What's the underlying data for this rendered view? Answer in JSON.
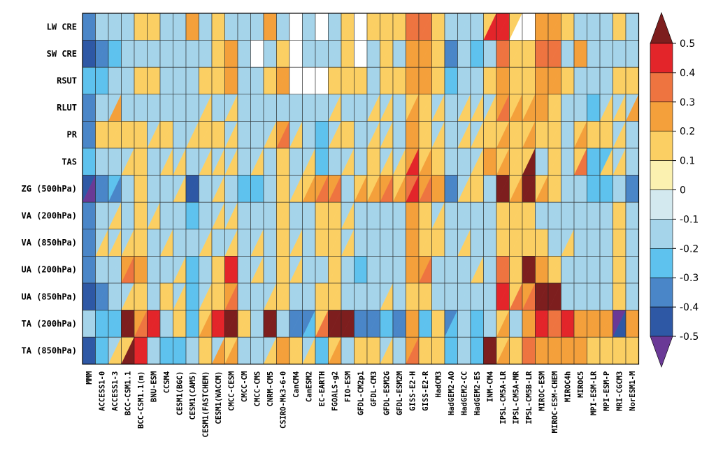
{
  "chart_data": {
    "type": "heatmap",
    "title": "",
    "xlabel": "",
    "ylabel": "",
    "cell_split": "diagonal",
    "rows": [
      "LW CRE",
      "SW CRE",
      "RSUT",
      "RLUT",
      "PR",
      "TAS",
      "ZG (500hPa)",
      "VA (200hPa)",
      "VA (850hPa)",
      "UA (200hPa)",
      "UA (850hPa)",
      "TA (200hPa)",
      "TA (850hPa)"
    ],
    "columns": [
      "MMM",
      "ACCESS1-0",
      "ACCESS1-3",
      "BCC-CSM1.1",
      "BCC-CSM1.1(m)",
      "BNU-ESM",
      "CCSM4",
      "CESM1(BGC)",
      "CESM1(CAM5)",
      "CESM1(FASTCHEM)",
      "CESM1(WACCM)",
      "CMCC-CESM",
      "CMCC-CM",
      "CMCC-CMS",
      "CNRM-CM5",
      "CSIRO-Mk3-6-0",
      "CanCM4",
      "CanESM2",
      "EC-EARTH",
      "FGOALS-g2",
      "FIO-ESM",
      "GFDL-CM2p1",
      "GFDL-CM3",
      "GFDL-ESM2G",
      "GFDL-ESM2M",
      "GISS-E2-H",
      "GISS-E2-R",
      "HadCM3",
      "HadGEM2-AO",
      "HadGEM2-CC",
      "HadGEM2-ES",
      "INM-CM4",
      "IPSL-CM5A-LR",
      "IPSL-CM5A-MR",
      "IPSL-CM5B-LR",
      "MIROC-ESM",
      "MIROC-ESM-CHEM",
      "MIROC4h",
      "MIROC5",
      "MPI-ESM-LR",
      "MPI-ESM-P",
      "MRI-CGCM3",
      "NorESM1-M"
    ],
    "colorbar": {
      "ticks": [
        "0.5",
        "0.4",
        "0.3",
        "0.2",
        "0.1",
        "0",
        "-0.1",
        "-0.2",
        "-0.3",
        "-0.4",
        "-0.5"
      ],
      "colors": [
        "#7d1e1e",
        "#e3252a",
        "#ee7440",
        "#f4a03b",
        "#fbcf63",
        "#fbf1b0",
        "#d3e9ef",
        "#a5d4ea",
        "#5ec2ee",
        "#4a86c8",
        "#2e58a5",
        "#6a3996"
      ]
    },
    "values_upper_left": [
      [
        -0.3,
        -0.1,
        -0.1,
        -0.1,
        0.1,
        0.1,
        -0.1,
        -0.1,
        0.2,
        -0.1,
        0.1,
        -0.1,
        -0.1,
        -0.1,
        0.2,
        -0.1,
        null,
        -0.1,
        null,
        -0.1,
        0.1,
        null,
        0.1,
        0.1,
        0.1,
        0.3,
        0.3,
        0.1,
        -0.1,
        -0.1,
        -0.1,
        0.1,
        0.4,
        0.1,
        null,
        0.2,
        0.2,
        0.1,
        -0.1,
        -0.1,
        -0.1,
        0.1,
        -0.1
      ],
      [
        -0.4,
        -0.3,
        -0.2,
        -0.1,
        -0.1,
        -0.1,
        -0.1,
        -0.1,
        -0.1,
        -0.1,
        0.1,
        0.2,
        -0.1,
        null,
        -0.1,
        0.1,
        null,
        -0.1,
        -0.1,
        -0.1,
        0.1,
        null,
        -0.1,
        0.1,
        -0.1,
        0.2,
        0.2,
        0.1,
        -0.3,
        -0.1,
        -0.2,
        -0.1,
        0.3,
        0.1,
        0.1,
        0.3,
        0.3,
        -0.1,
        0.2,
        -0.1,
        -0.1,
        -0.1,
        -0.1
      ],
      [
        -0.2,
        -0.2,
        -0.1,
        -0.1,
        0.1,
        0.1,
        -0.1,
        -0.1,
        -0.1,
        0.1,
        0.1,
        0.2,
        -0.1,
        -0.1,
        0.1,
        0.2,
        null,
        null,
        null,
        0.1,
        0.1,
        0.1,
        -0.1,
        0.1,
        0.1,
        0.2,
        0.2,
        0.1,
        -0.2,
        -0.1,
        -0.1,
        0.1,
        0.2,
        0.1,
        0.1,
        0.2,
        0.2,
        0.1,
        -0.1,
        -0.1,
        -0.1,
        0.1,
        0.1
      ],
      [
        -0.3,
        -0.1,
        -0.1,
        -0.1,
        -0.1,
        -0.1,
        -0.1,
        -0.1,
        -0.1,
        -0.1,
        -0.1,
        -0.1,
        -0.1,
        -0.1,
        -0.1,
        -0.1,
        -0.1,
        -0.1,
        -0.1,
        -0.1,
        -0.1,
        -0.1,
        -0.1,
        -0.1,
        -0.1,
        0.1,
        0.1,
        -0.1,
        -0.1,
        -0.1,
        -0.1,
        -0.1,
        0.2,
        0.1,
        0.1,
        0.2,
        0.1,
        -0.1,
        -0.1,
        -0.2,
        -0.1,
        -0.1,
        -0.1
      ],
      [
        -0.3,
        0.1,
        0.1,
        0.1,
        0.1,
        -0.1,
        0.1,
        -0.1,
        -0.1,
        0.1,
        0.1,
        -0.1,
        -0.1,
        -0.1,
        -0.1,
        0.2,
        -0.1,
        -0.1,
        -0.2,
        -0.1,
        0.1,
        -0.1,
        -0.1,
        -0.1,
        -0.1,
        0.2,
        0.1,
        -0.1,
        -0.1,
        -0.1,
        -0.1,
        0.1,
        0.1,
        0.1,
        0.1,
        0.1,
        0.1,
        -0.1,
        0.1,
        0.1,
        0.1,
        -0.1,
        -0.1
      ],
      [
        -0.2,
        -0.1,
        -0.1,
        -0.1,
        0.1,
        -0.1,
        -0.1,
        -0.1,
        -0.1,
        -0.1,
        -0.1,
        -0.1,
        -0.1,
        -0.1,
        -0.1,
        0.1,
        -0.1,
        -0.1,
        -0.2,
        -0.1,
        -0.1,
        -0.1,
        0.1,
        -0.1,
        -0.1,
        0.2,
        0.1,
        0.1,
        -0.1,
        -0.1,
        -0.1,
        0.2,
        0.1,
        0.1,
        0.1,
        -0.1,
        0.1,
        -0.1,
        0.1,
        -0.2,
        -0.2,
        -0.1,
        -0.1
      ],
      [
        -0.4,
        -0.3,
        -0.2,
        -0.1,
        0.1,
        -0.1,
        -0.1,
        -0.1,
        -0.4,
        -0.1,
        -0.1,
        -0.1,
        -0.2,
        -0.2,
        -0.1,
        0.1,
        -0.1,
        0.1,
        0.2,
        0.2,
        -0.1,
        0.1,
        0.1,
        0.2,
        0.1,
        0.3,
        0.2,
        0.2,
        -0.3,
        -0.1,
        0.1,
        -0.1,
        0.5,
        0.1,
        0.5,
        0.1,
        0.1,
        -0.1,
        -0.1,
        -0.2,
        -0.2,
        -0.1,
        -0.3
      ],
      [
        -0.3,
        -0.1,
        -0.1,
        -0.1,
        0.1,
        -0.1,
        -0.1,
        -0.1,
        -0.2,
        -0.1,
        -0.1,
        -0.1,
        -0.1,
        -0.1,
        -0.1,
        0.1,
        -0.1,
        -0.1,
        0.1,
        0.1,
        -0.1,
        -0.1,
        -0.1,
        -0.1,
        -0.1,
        0.2,
        0.1,
        -0.1,
        -0.1,
        -0.1,
        -0.1,
        -0.1,
        0.1,
        0.1,
        0.1,
        -0.1,
        -0.1,
        -0.1,
        -0.1,
        -0.1,
        -0.1,
        0.1,
        -0.1
      ],
      [
        -0.3,
        -0.1,
        -0.1,
        -0.1,
        0.1,
        -0.1,
        -0.1,
        -0.1,
        -0.1,
        -0.1,
        -0.1,
        -0.1,
        -0.1,
        -0.1,
        -0.1,
        0.1,
        -0.1,
        -0.1,
        0.1,
        0.1,
        -0.1,
        -0.1,
        -0.1,
        -0.1,
        -0.1,
        0.2,
        0.1,
        0.1,
        -0.1,
        -0.1,
        -0.1,
        -0.1,
        0.1,
        0.1,
        0.1,
        0.1,
        -0.1,
        -0.1,
        -0.1,
        -0.1,
        -0.1,
        0.1,
        -0.1
      ],
      [
        -0.3,
        -0.1,
        -0.1,
        0.2,
        0.2,
        -0.1,
        -0.1,
        -0.1,
        -0.2,
        -0.1,
        0.1,
        0.4,
        -0.1,
        -0.1,
        -0.1,
        0.1,
        -0.1,
        -0.1,
        -0.1,
        0.1,
        -0.1,
        -0.2,
        -0.1,
        -0.1,
        -0.1,
        0.2,
        0.2,
        -0.1,
        -0.1,
        -0.1,
        -0.1,
        -0.1,
        0.3,
        0.1,
        0.5,
        0.2,
        0.1,
        -0.1,
        -0.1,
        -0.1,
        -0.1,
        0.1,
        -0.1
      ],
      [
        -0.4,
        -0.3,
        -0.1,
        -0.1,
        0.1,
        -0.1,
        0.1,
        -0.1,
        -0.2,
        -0.1,
        0.1,
        0.2,
        -0.1,
        -0.1,
        -0.1,
        0.1,
        -0.1,
        -0.1,
        0.1,
        0.1,
        -0.1,
        -0.1,
        -0.1,
        -0.1,
        -0.1,
        0.1,
        0.1,
        -0.1,
        -0.1,
        -0.1,
        -0.1,
        -0.1,
        0.4,
        0.1,
        0.2,
        0.5,
        0.5,
        -0.1,
        -0.1,
        -0.1,
        -0.1,
        0.1,
        -0.1
      ],
      [
        -0.1,
        -0.2,
        -0.2,
        0.5,
        0.2,
        0.4,
        -0.1,
        0.1,
        -0.2,
        0.1,
        0.4,
        0.5,
        0.1,
        -0.1,
        0.5,
        -0.1,
        -0.3,
        -0.3,
        0.1,
        0.5,
        0.5,
        -0.3,
        -0.3,
        -0.2,
        -0.3,
        0.2,
        -0.2,
        0.1,
        -0.3,
        -0.1,
        -0.2,
        -0.1,
        0.1,
        -0.1,
        0.2,
        0.4,
        0.3,
        0.4,
        0.2,
        0.2,
        0.2,
        -0.5,
        0.2
      ],
      [
        -0.4,
        -0.2,
        -0.1,
        0.1,
        0.4,
        -0.1,
        -0.2,
        -0.2,
        -0.1,
        0.1,
        -0.1,
        0.1,
        -0.1,
        -0.1,
        -0.1,
        0.2,
        0.1,
        -0.1,
        -0.2,
        0.1,
        -0.1,
        0.1,
        0.1,
        -0.1,
        -0.1,
        0.2,
        0.1,
        0.1,
        -0.2,
        -0.1,
        -0.2,
        0.5,
        0.1,
        0.1,
        0.3,
        0.2,
        0.2,
        0.2,
        0.2,
        0.1,
        0.1,
        0.1,
        0.1
      ]
    ],
    "values_lower_right": [
      [
        -0.3,
        -0.1,
        -0.1,
        -0.1,
        0.1,
        0.1,
        -0.1,
        -0.1,
        0.2,
        -0.1,
        0.1,
        -0.1,
        -0.1,
        -0.1,
        0.2,
        -0.1,
        null,
        -0.1,
        null,
        -0.1,
        0.1,
        null,
        0.1,
        0.1,
        0.1,
        0.3,
        0.3,
        0.1,
        -0.1,
        -0.1,
        -0.1,
        0.4,
        0.4,
        null,
        null,
        0.2,
        0.2,
        0.1,
        -0.1,
        -0.1,
        -0.1,
        0.1,
        -0.1
      ],
      [
        -0.4,
        -0.3,
        -0.2,
        -0.1,
        -0.1,
        -0.1,
        -0.1,
        -0.1,
        -0.1,
        -0.1,
        0.1,
        0.2,
        -0.1,
        null,
        -0.1,
        0.1,
        null,
        -0.1,
        -0.1,
        -0.1,
        0.1,
        null,
        -0.1,
        0.1,
        -0.1,
        0.2,
        0.2,
        0.1,
        -0.3,
        -0.1,
        -0.2,
        -0.1,
        0.3,
        0.1,
        0.1,
        0.3,
        0.3,
        -0.1,
        0.2,
        -0.1,
        -0.1,
        -0.1,
        -0.1
      ],
      [
        -0.2,
        -0.2,
        -0.1,
        -0.1,
        0.1,
        0.1,
        -0.1,
        -0.1,
        -0.1,
        0.1,
        0.1,
        0.2,
        -0.1,
        -0.1,
        0.1,
        0.2,
        null,
        null,
        null,
        0.1,
        0.1,
        0.1,
        -0.1,
        0.1,
        0.1,
        0.2,
        0.2,
        0.1,
        -0.2,
        -0.1,
        -0.1,
        0.1,
        0.2,
        0.1,
        0.1,
        0.2,
        0.2,
        0.1,
        -0.1,
        -0.1,
        -0.1,
        0.1,
        0.1
      ],
      [
        -0.3,
        -0.1,
        0.2,
        -0.1,
        -0.1,
        -0.1,
        -0.1,
        -0.1,
        -0.1,
        0.1,
        -0.1,
        0.1,
        -0.1,
        -0.1,
        -0.1,
        -0.1,
        -0.1,
        -0.1,
        -0.1,
        0.1,
        -0.1,
        -0.1,
        0.1,
        0.1,
        -0.1,
        0.2,
        0.1,
        0.1,
        -0.1,
        0.1,
        0.1,
        0.1,
        0.3,
        0.2,
        0.2,
        0.2,
        0.1,
        -0.1,
        -0.1,
        -0.2,
        0.1,
        0.1,
        0.2
      ],
      [
        -0.3,
        0.1,
        0.1,
        0.1,
        0.1,
        0.1,
        0.1,
        -0.1,
        0.1,
        0.1,
        0.1,
        0.1,
        -0.1,
        -0.1,
        0.1,
        0.3,
        0.1,
        -0.1,
        -0.2,
        0.1,
        0.1,
        -0.1,
        0.1,
        0.1,
        -0.1,
        0.2,
        0.1,
        0.1,
        -0.1,
        0.1,
        0.1,
        0.1,
        0.2,
        0.1,
        0.2,
        0.1,
        0.1,
        -0.1,
        0.2,
        0.1,
        0.1,
        0.1,
        -0.1
      ],
      [
        -0.2,
        -0.1,
        -0.1,
        0.1,
        0.1,
        -0.1,
        0.1,
        0.1,
        -0.1,
        0.1,
        0.1,
        0.1,
        -0.1,
        0.1,
        -0.1,
        0.1,
        -0.1,
        0.1,
        -0.2,
        -0.1,
        0.1,
        -0.1,
        0.1,
        0.1,
        0.1,
        0.4,
        0.2,
        0.1,
        -0.1,
        -0.1,
        0.1,
        0.2,
        0.2,
        0.1,
        0.5,
        -0.1,
        0.1,
        -0.1,
        0.3,
        -0.2,
        0.1,
        0.1,
        -0.1
      ],
      [
        -0.5,
        -0.3,
        -0.3,
        -0.1,
        0.1,
        -0.1,
        -0.1,
        0.1,
        -0.4,
        -0.1,
        0.1,
        -0.1,
        -0.2,
        -0.2,
        -0.1,
        0.1,
        0.1,
        0.2,
        0.3,
        0.3,
        -0.1,
        0.2,
        0.2,
        0.3,
        0.2,
        0.4,
        0.3,
        0.2,
        -0.3,
        0.1,
        0.1,
        -0.1,
        0.5,
        0.2,
        0.5,
        0.2,
        0.1,
        -0.1,
        -0.1,
        -0.2,
        -0.2,
        -0.1,
        -0.3
      ],
      [
        -0.3,
        -0.1,
        0.1,
        -0.1,
        0.1,
        0.1,
        -0.1,
        -0.1,
        -0.2,
        -0.1,
        0.1,
        0.1,
        -0.1,
        -0.1,
        -0.1,
        0.1,
        -0.1,
        -0.1,
        0.1,
        0.1,
        0.1,
        -0.1,
        -0.1,
        -0.1,
        -0.1,
        0.2,
        0.1,
        0.1,
        -0.1,
        -0.1,
        -0.1,
        -0.1,
        0.1,
        0.1,
        0.1,
        -0.1,
        -0.1,
        -0.1,
        -0.1,
        -0.1,
        -0.1,
        0.1,
        -0.1
      ],
      [
        -0.3,
        0.1,
        0.1,
        0.1,
        0.1,
        -0.1,
        0.1,
        -0.1,
        -0.1,
        0.1,
        -0.1,
        0.1,
        -0.1,
        0.1,
        -0.1,
        0.1,
        0.1,
        -0.1,
        0.1,
        0.1,
        0.1,
        -0.1,
        -0.1,
        -0.1,
        -0.1,
        0.2,
        0.1,
        0.1,
        -0.1,
        0.1,
        -0.1,
        -0.1,
        0.1,
        0.1,
        0.1,
        0.1,
        -0.1,
        0.1,
        -0.1,
        -0.1,
        -0.1,
        0.1,
        -0.1
      ],
      [
        -0.3,
        -0.1,
        -0.1,
        0.3,
        0.2,
        -0.1,
        -0.1,
        0.1,
        -0.2,
        -0.1,
        0.1,
        0.4,
        -0.1,
        0.1,
        -0.1,
        0.1,
        0.1,
        -0.1,
        -0.1,
        0.1,
        -0.1,
        -0.2,
        -0.1,
        -0.1,
        -0.1,
        0.2,
        0.3,
        -0.1,
        -0.1,
        -0.1,
        0.1,
        -0.1,
        0.3,
        0.1,
        0.5,
        0.2,
        0.1,
        -0.1,
        -0.1,
        -0.1,
        -0.1,
        0.1,
        -0.1
      ],
      [
        -0.4,
        -0.3,
        -0.1,
        0.1,
        0.1,
        -0.1,
        0.1,
        0.1,
        -0.2,
        0.1,
        0.1,
        0.3,
        -0.1,
        -0.1,
        0.1,
        0.1,
        -0.1,
        -0.1,
        0.1,
        0.1,
        -0.1,
        -0.1,
        -0.1,
        0.1,
        -0.1,
        0.1,
        0.1,
        -0.1,
        -0.1,
        -0.1,
        -0.1,
        -0.1,
        0.4,
        0.3,
        0.3,
        0.5,
        0.5,
        -0.1,
        -0.1,
        -0.1,
        -0.1,
        0.1,
        -0.1
      ],
      [
        -0.1,
        -0.2,
        -0.2,
        0.5,
        0.3,
        0.4,
        -0.1,
        0.1,
        -0.2,
        0.2,
        0.4,
        0.5,
        0.1,
        -0.1,
        0.5,
        -0.1,
        -0.3,
        -0.2,
        0.3,
        0.5,
        0.5,
        -0.3,
        -0.3,
        -0.2,
        -0.3,
        0.2,
        -0.2,
        0.1,
        -0.2,
        -0.1,
        -0.2,
        -0.1,
        0.2,
        -0.1,
        0.2,
        0.4,
        0.3,
        0.4,
        0.2,
        0.2,
        0.2,
        -0.4,
        0.2
      ],
      [
        -0.4,
        -0.2,
        0.1,
        0.5,
        0.4,
        -0.1,
        -0.2,
        -0.2,
        -0.1,
        0.1,
        0.2,
        0.2,
        -0.1,
        -0.1,
        0.1,
        0.2,
        0.1,
        0.1,
        -0.2,
        0.2,
        -0.1,
        0.1,
        0.1,
        0.1,
        -0.1,
        0.3,
        0.1,
        0.1,
        -0.2,
        -0.1,
        -0.2,
        0.5,
        0.2,
        0.1,
        0.3,
        0.2,
        0.2,
        0.2,
        0.2,
        0.1,
        0.1,
        0.1,
        0.1
      ]
    ]
  }
}
